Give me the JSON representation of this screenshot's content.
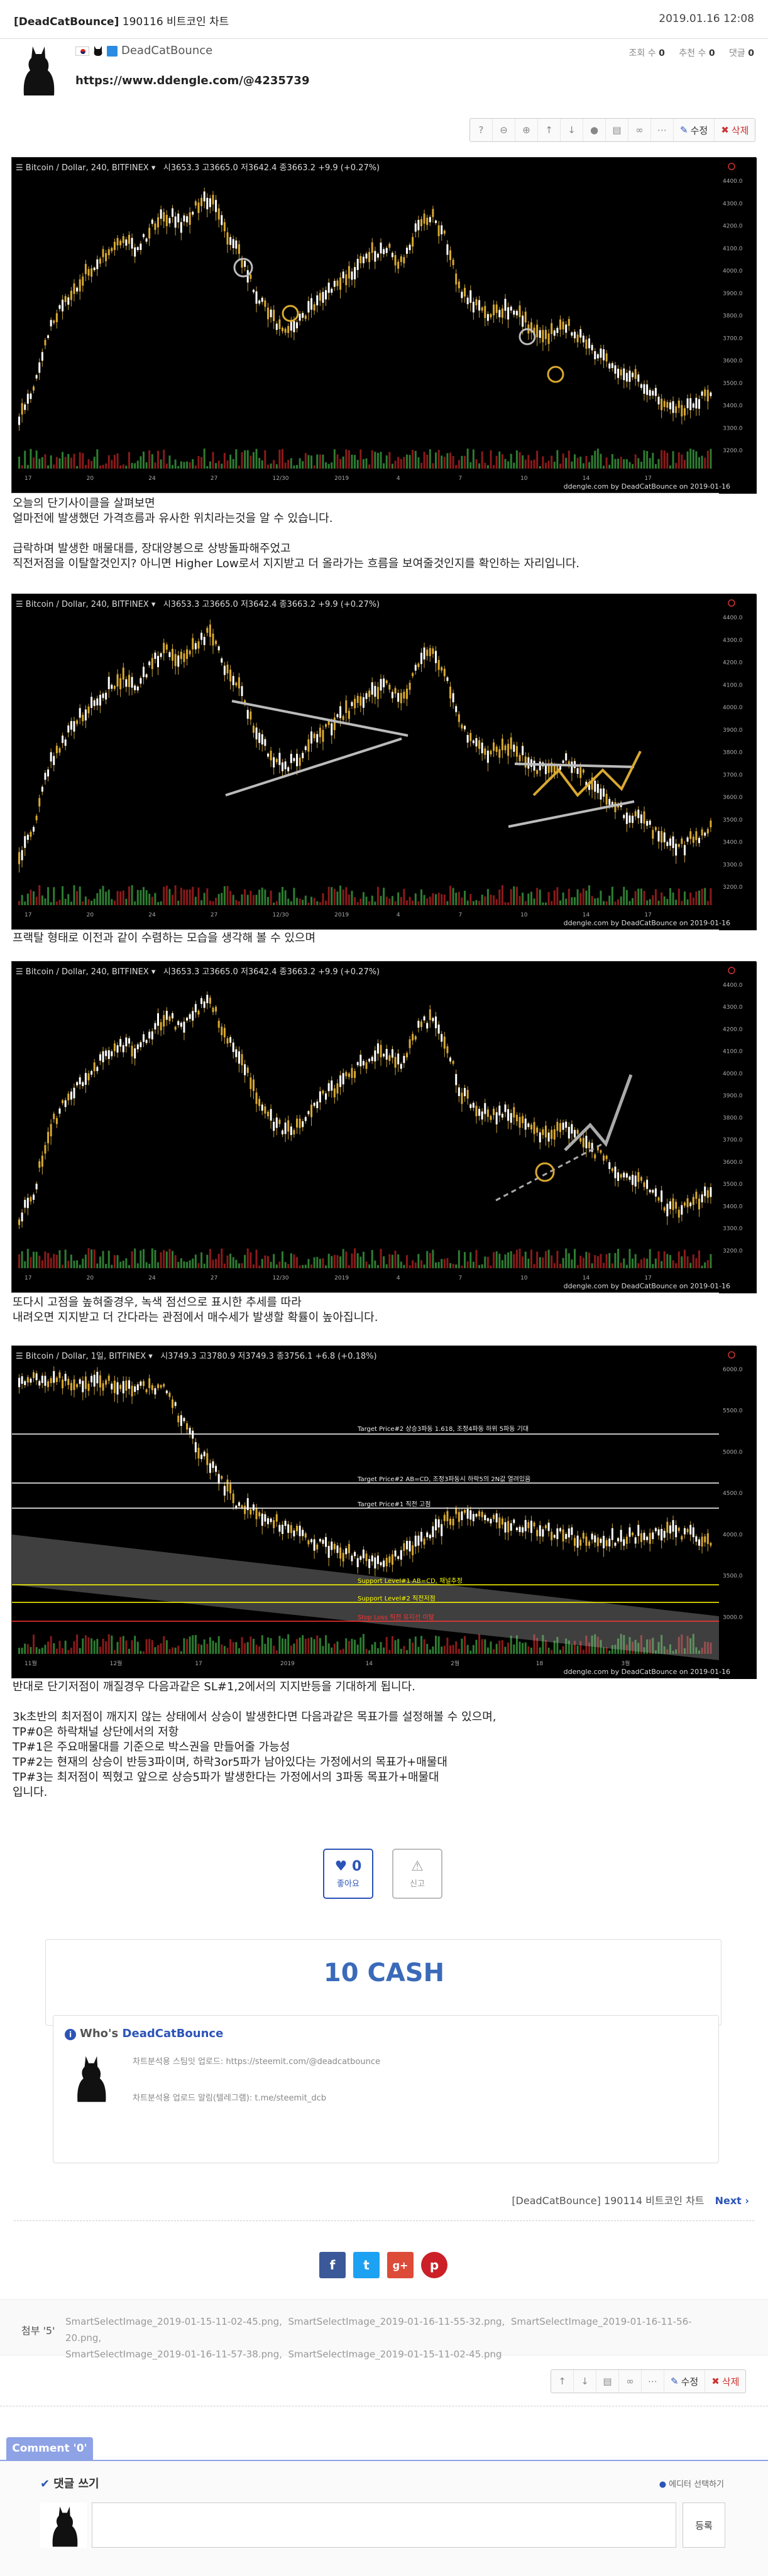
{
  "header": {
    "title_tag": "[DeadCatBounce]",
    "title": "190116 비트코인 차트",
    "date": "2019.01.16 12:08"
  },
  "author": {
    "name": "DeadCatBounce",
    "views_label": "조회 수",
    "views": "0",
    "recommend_label": "추천 수",
    "recommend": "0",
    "comments_label": "댓글",
    "comments": "0",
    "url": "https://www.ddengle.com/@4235739"
  },
  "toolbar": {
    "help": "?",
    "zoom_out": "−",
    "zoom_in": "+",
    "edit_label": "수정",
    "delete_label": "삭제"
  },
  "charts": [
    {
      "header": "Bitcoin / Dollar, 240, BITFINEX",
      "ohlc": "시3653.3  고3665.0  저3642.4  종3663.2  +9.9 (+0.27%)",
      "footer": "ddengle.com by DeadCatBounce on 2019-01-16",
      "xlabels": [
        "17",
        "20",
        "24",
        "27",
        "12/30",
        "2019",
        "4",
        "7",
        "10",
        "14",
        "17"
      ],
      "price_labels": [
        "4400.0",
        "4300.0",
        "4200.0",
        "4100.0",
        "4000.0",
        "3900.0",
        "3800.0",
        "3700.0",
        "3600.0",
        "3500.0",
        "3400.0",
        "3300.0",
        "3200.0"
      ]
    },
    {
      "header": "Bitcoin / Dollar, 240, BITFINEX",
      "ohlc": "시3653.3  고3665.0  저3642.4  종3663.2  +9.9 (+0.27%)",
      "footer": "ddengle.com by DeadCatBounce on 2019-01-16",
      "xlabels": [
        "17",
        "20",
        "24",
        "27",
        "12/30",
        "2019",
        "4",
        "7",
        "10",
        "14",
        "17"
      ],
      "price_labels": [
        "4400.0",
        "4300.0",
        "4200.0",
        "4100.0",
        "4000.0",
        "3900.0",
        "3800.0",
        "3700.0",
        "3600.0",
        "3500.0",
        "3400.0",
        "3300.0",
        "3200.0"
      ]
    },
    {
      "header": "Bitcoin / Dollar, 240, BITFINEX",
      "ohlc": "시3653.3  고3665.0  저3642.4  종3663.2  +9.9 (+0.27%)",
      "footer": "ddengle.com by DeadCatBounce on 2019-01-16",
      "xlabels": [
        "17",
        "20",
        "24",
        "27",
        "12/30",
        "2019",
        "4",
        "7",
        "10",
        "14",
        "17"
      ],
      "price_labels": [
        "4400.0",
        "4300.0",
        "4200.0",
        "4100.0",
        "4000.0",
        "3900.0",
        "3800.0",
        "3700.0",
        "3600.0",
        "3500.0",
        "3400.0",
        "3300.0",
        "3200.0"
      ]
    },
    {
      "header": "Bitcoin / Dollar, 1일, BITFINEX",
      "ohlc": "시3749.3  고3780.9  저3749.3  종3756.1  +6.8 (+0.18%)",
      "footer": "ddengle.com by DeadCatBounce on 2019-01-16",
      "xlabels": [
        "11월",
        "12월",
        "17",
        "2019",
        "14",
        "2월",
        "18",
        "3월"
      ],
      "price_labels": [
        "6000.0",
        "5500.0",
        "5000.0",
        "4500.0",
        "4000.0",
        "3500.0",
        "3000.0"
      ],
      "annotations": {
        "tp2": "Target Price#2 상승3파동 1.618, 조정4파동 하위 5파동 기대",
        "tp1b": "Target Price#2 AB=CD, 조정3파동시 하락5의 2N값 열려있음",
        "tp0": "Target Price#1 직전 고점",
        "sup1": "Support Level#1 AB=CD, 채널추정",
        "sup2": "Support Level#2 직전저점",
        "stop": "Stop Loss 직전 유지선 이탈"
      }
    }
  ],
  "paragraphs": {
    "p1": [
      "오늘의 단기사이클을 살펴보면",
      "얼마전에 발생했던 가격흐름과 유사한 위치라는것을 알 수 있습니다.",
      "",
      "급락하며 발생한 매물대를, 장대양봉으로 상방돌파해주었고",
      "직전저점을 이탈할것인지? 아니면 Higher Low로서 지지받고 더 올라가는 흐름을 보여줄것인지를 확인하는 자리입니다."
    ],
    "p2": [
      "프랙탈 형태로 이전과 같이 수렴하는 모습을 생각해 볼 수 있으며"
    ],
    "p3": [
      "또다시 고점을 높혀줄경우, 녹색 점선으로 표시한 추세를 따라",
      "내려오면 지지받고 더 간다라는 관점에서 매수세가 발생할 확률이 높아집니다."
    ],
    "p4": [
      "반대로 단기저점이 깨질경우 다음과같은 SL#1,2에서의 지지반등을 기대하게 됩니다.",
      "",
      "3k초반의 최저점이 깨지지 않는 상태에서 상승이 발생한다면 다음과같은 목표가를 설정해볼 수 있으며,",
      "TP#0은 하락채널 상단에서의 저항",
      "TP#1은 주요매물대를 기준으로 박스권을 만들어줄 가능성",
      "TP#2는 현재의 상승이 반등3파이며, 하락3or5파가 남아있다는 가정에서의 목표가+매물대",
      "TP#3는 최저점이 찍혔고 앞으로 상승5파가 발생한다는 가정에서의 3파동 목표가+매물대",
      "입니다."
    ]
  },
  "actions": {
    "like_count": "0",
    "like_label": "좋아요",
    "report_label": "신고"
  },
  "cash": "10 CASH",
  "who": {
    "prefix": "Who's",
    "name": "DeadCatBounce",
    "line1": "차트분석용 스팀잇 업로드: https://steemit.com/@deadcatbounce",
    "line2": "차트분석용 업로드 알림(텔레그램): t.me/steemit_dcb"
  },
  "nav": {
    "title": "[DeadCatBounce] 190114 비트코인 차트",
    "next": "Next"
  },
  "share": [
    "f",
    "t",
    "g+",
    "p"
  ],
  "attachments": {
    "label": "첨부 '5'",
    "files": [
      "SmartSelectImage_2019-01-15-11-02-45.png,",
      "SmartSelectImage_2019-01-16-11-55-32.png,",
      "SmartSelectImage_2019-01-16-11-56-20.png,",
      "SmartSelectImage_2019-01-16-11-57-38.png,",
      "SmartSelectImage_2019-01-15-11-02-45.png"
    ]
  },
  "comments": {
    "tab": "Comment '0'",
    "write_label": "댓글 쓰기",
    "editor_label": "에디터 선택하기",
    "submit": "등록"
  },
  "colors": {
    "accent": "#2c54b8",
    "cash_blue": "#3a6ab9",
    "candle_gold": "#d9a930",
    "chart_bg": "#000000"
  }
}
